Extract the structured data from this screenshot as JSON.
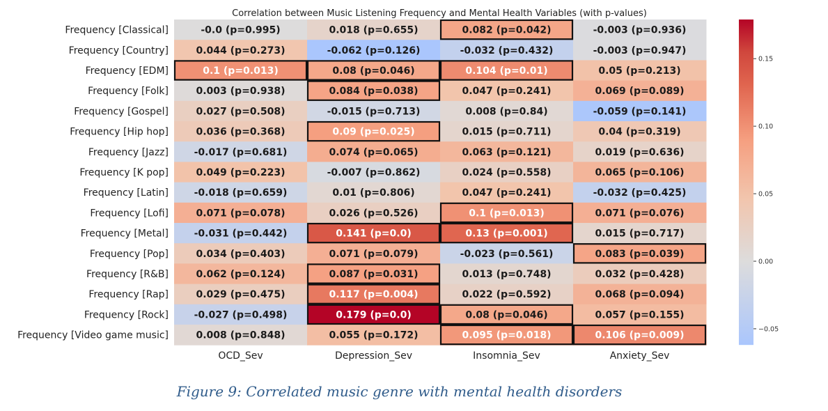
{
  "figure_caption": "Figure 9: Correlated music genre with mental health disorders",
  "chart_data": {
    "type": "heatmap",
    "title": "Correlation between Music Listening Frequency and Mental Health Variables (with p-values)",
    "rows": [
      "Frequency [Classical]",
      "Frequency [Country]",
      "Frequency [EDM]",
      "Frequency [Folk]",
      "Frequency [Gospel]",
      "Frequency [Hip hop]",
      "Frequency [Jazz]",
      "Frequency [K pop]",
      "Frequency [Latin]",
      "Frequency [Lofi]",
      "Frequency [Metal]",
      "Frequency [Pop]",
      "Frequency [R&B]",
      "Frequency [Rap]",
      "Frequency [Rock]",
      "Frequency [Video game music]"
    ],
    "columns": [
      "OCD_Sev",
      "Depression_Sev",
      "Insomnia_Sev",
      "Anxiety_Sev"
    ],
    "cells": [
      [
        "-0.0 (p=0.995)",
        "0.018 (p=0.655)",
        "0.082 (p=0.042)",
        "-0.003 (p=0.936)"
      ],
      [
        "0.044 (p=0.273)",
        "-0.062 (p=0.126)",
        "-0.032 (p=0.432)",
        "-0.003 (p=0.947)"
      ],
      [
        "0.1 (p=0.013)",
        "0.08 (p=0.046)",
        "0.104 (p=0.01)",
        "0.05 (p=0.213)"
      ],
      [
        "0.003 (p=0.938)",
        "0.084 (p=0.038)",
        "0.047 (p=0.241)",
        "0.069 (p=0.089)"
      ],
      [
        "0.027 (p=0.508)",
        "-0.015 (p=0.713)",
        "0.008 (p=0.84)",
        "-0.059 (p=0.141)"
      ],
      [
        "0.036 (p=0.368)",
        "0.09 (p=0.025)",
        "0.015 (p=0.711)",
        "0.04 (p=0.319)"
      ],
      [
        "-0.017 (p=0.681)",
        "0.074 (p=0.065)",
        "0.063 (p=0.121)",
        "0.019 (p=0.636)"
      ],
      [
        "0.049 (p=0.223)",
        "-0.007 (p=0.862)",
        "0.024 (p=0.558)",
        "0.065 (p=0.106)"
      ],
      [
        "-0.018 (p=0.659)",
        "0.01 (p=0.806)",
        "0.047 (p=0.241)",
        "-0.032 (p=0.425)"
      ],
      [
        "0.071 (p=0.078)",
        "0.026 (p=0.526)",
        "0.1 (p=0.013)",
        "0.071 (p=0.076)"
      ],
      [
        "-0.031 (p=0.442)",
        "0.141 (p=0.0)",
        "0.13 (p=0.001)",
        "0.015 (p=0.717)"
      ],
      [
        "0.034 (p=0.403)",
        "0.071 (p=0.079)",
        "-0.023 (p=0.561)",
        "0.083 (p=0.039)"
      ],
      [
        "0.062 (p=0.124)",
        "0.087 (p=0.031)",
        "0.013 (p=0.748)",
        "0.032 (p=0.428)"
      ],
      [
        "0.029 (p=0.475)",
        "0.117 (p=0.004)",
        "0.022 (p=0.592)",
        "0.068 (p=0.094)"
      ],
      [
        "-0.027 (p=0.498)",
        "0.179 (p=0.0)",
        "0.08 (p=0.046)",
        "0.057 (p=0.155)"
      ],
      [
        "0.008 (p=0.848)",
        "0.055 (p=0.172)",
        "0.095 (p=0.018)",
        "0.106 (p=0.009)"
      ]
    ],
    "significant_outlined": [
      [
        false,
        false,
        true,
        false
      ],
      [
        false,
        false,
        false,
        false
      ],
      [
        true,
        true,
        true,
        false
      ],
      [
        false,
        true,
        false,
        false
      ],
      [
        false,
        false,
        false,
        false
      ],
      [
        false,
        true,
        false,
        false
      ],
      [
        false,
        false,
        false,
        false
      ],
      [
        false,
        false,
        false,
        false
      ],
      [
        false,
        false,
        false,
        false
      ],
      [
        false,
        false,
        true,
        false
      ],
      [
        false,
        true,
        true,
        false
      ],
      [
        false,
        false,
        false,
        true
      ],
      [
        false,
        true,
        false,
        false
      ],
      [
        false,
        true,
        false,
        false
      ],
      [
        false,
        true,
        true,
        false
      ],
      [
        false,
        false,
        true,
        true
      ]
    ],
    "colormap": "coolwarm",
    "colorbar": {
      "range": [
        -0.062,
        0.179
      ],
      "ticks": [
        0.15,
        0.1,
        0.05,
        0.0,
        -0.05
      ],
      "tick_labels": [
        "0.15",
        "0.10",
        "0.05",
        "0.00",
        "−0.05"
      ]
    },
    "colors": {
      "cold": "#aac6fd",
      "neutral": "#dddcdc",
      "hot": "#b40426"
    }
  }
}
